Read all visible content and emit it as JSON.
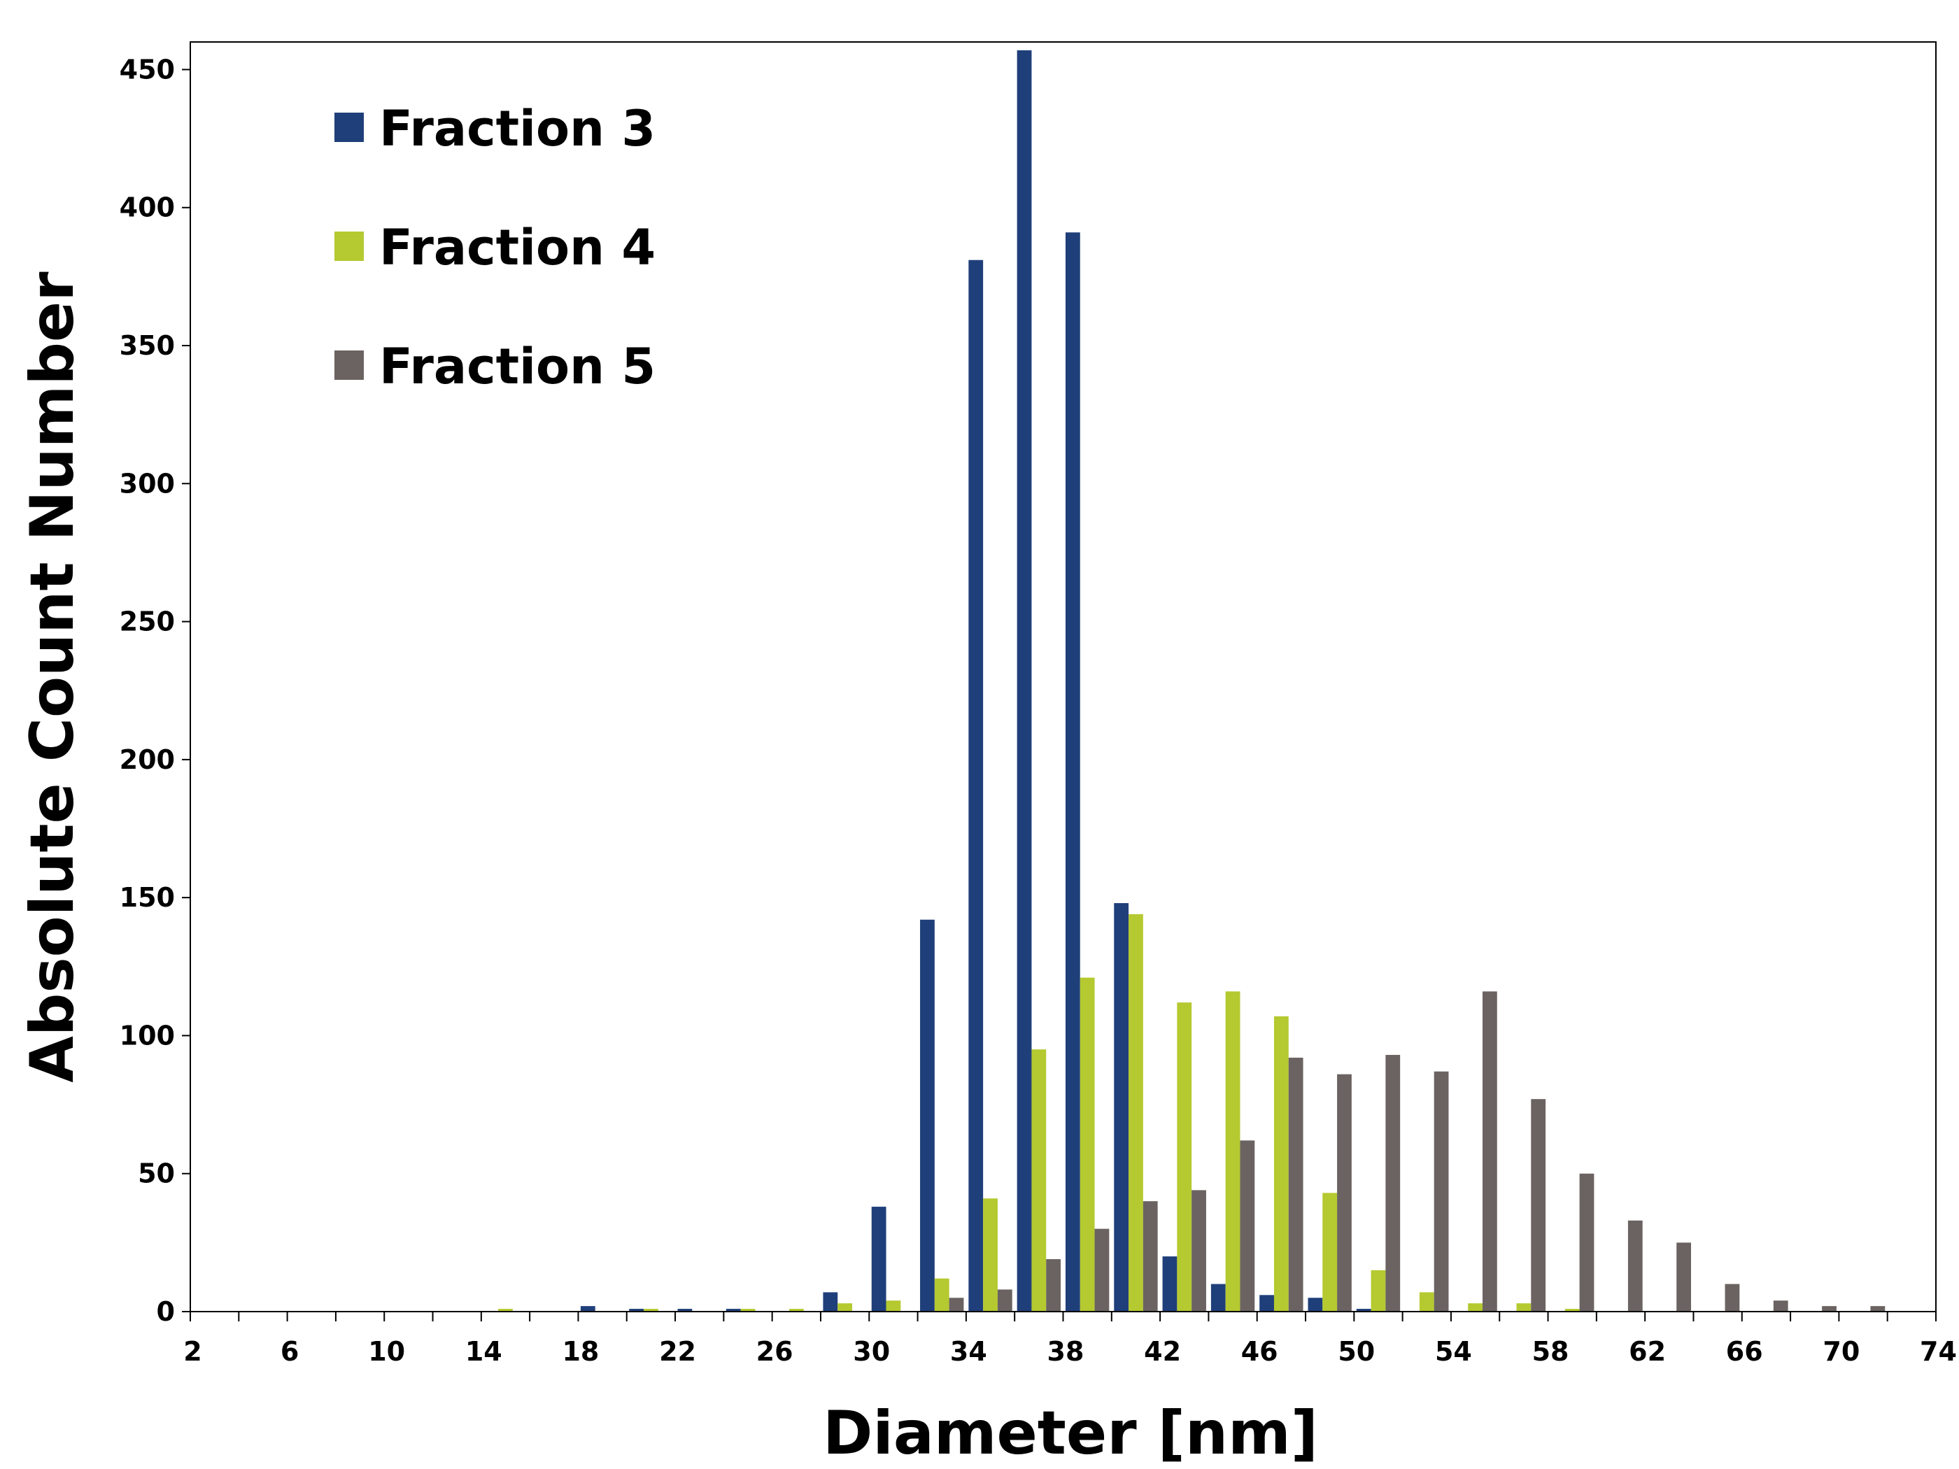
{
  "chart_data": {
    "type": "bar",
    "title": "",
    "xlabel": "Diameter [nm]",
    "ylabel": "Absolute Count Number",
    "ylim": [
      0,
      460
    ],
    "yticks": [
      0,
      50,
      100,
      150,
      200,
      250,
      300,
      350,
      400,
      450
    ],
    "categories": [
      2,
      4,
      6,
      8,
      10,
      12,
      14,
      16,
      18,
      20,
      22,
      24,
      26,
      28,
      30,
      32,
      34,
      36,
      38,
      40,
      42,
      44,
      46,
      48,
      50,
      52,
      54,
      56,
      58,
      60,
      62,
      64,
      66,
      68,
      70,
      72
    ],
    "xtick_labels": [
      "2",
      "6",
      "10",
      "14",
      "18",
      "22",
      "26",
      "30",
      "34",
      "38",
      "42",
      "46",
      "50",
      "54",
      "58",
      "62",
      "66",
      "70",
      "74"
    ],
    "legend_position": "top-left",
    "grid": false,
    "series": [
      {
        "name": "Fraction 3",
        "color": "#1f3f7a",
        "values": [
          0,
          0,
          0,
          0,
          0,
          0,
          0,
          0,
          2,
          1,
          1,
          1,
          0,
          7,
          38,
          142,
          381,
          457,
          391,
          148,
          20,
          10,
          6,
          5,
          1,
          0,
          0,
          0,
          0,
          0,
          0,
          0,
          0,
          0,
          0,
          0
        ]
      },
      {
        "name": "Fraction 4",
        "color": "#b5c930",
        "values": [
          0,
          0,
          0,
          0,
          0,
          0,
          1,
          0,
          0,
          1,
          0,
          1,
          1,
          3,
          4,
          12,
          41,
          95,
          121,
          144,
          112,
          116,
          107,
          43,
          15,
          7,
          3,
          3,
          1,
          0,
          0,
          0,
          0,
          0,
          0,
          0
        ]
      },
      {
        "name": "Fraction 5",
        "color": "#6b6361",
        "values": [
          0,
          0,
          0,
          0,
          0,
          0,
          0,
          0,
          0,
          0,
          0,
          0,
          0,
          0,
          0,
          5,
          8,
          19,
          30,
          40,
          44,
          62,
          92,
          86,
          93,
          87,
          116,
          77,
          50,
          33,
          25,
          10,
          4,
          2,
          2,
          0
        ]
      }
    ]
  }
}
